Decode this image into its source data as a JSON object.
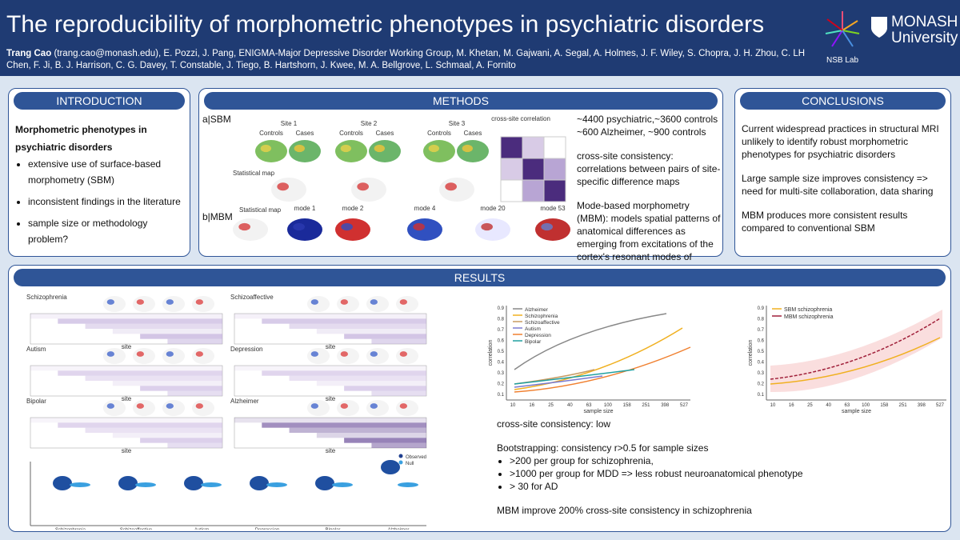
{
  "header": {
    "title": "The reproducibility of morphometric phenotypes in psychiatric disorders",
    "presenter": "Trang Cao",
    "authors": "(trang.cao@monash.edu), E. Pozzi, J. Pang, ENIGMA-Major Depressive Disorder Working Group, M. Khetan, M. Gajwani, A. Segal, A. Holmes, J. F. Wiley, S. Chopra, J. H. Zhou, C. LH Chen, F. Ji, B. J. Harrison, C. G. Davey, T. Constable, J. Tiego, B. Hartshorn, J. Kwee, M. A. Bellgrove, L. Schmaal, A. Fornito",
    "lab": "NSB Lab",
    "university": [
      "MONASH",
      "University"
    ]
  },
  "introduction": {
    "heading": "INTRODUCTION",
    "subtitle": "Morphometric phenotypes in psychiatric disorders",
    "bullets": [
      "extensive use of surface-based morphometry (SBM)",
      "inconsistent findings in the literature",
      "sample size or methodology problem?"
    ]
  },
  "methods": {
    "heading": "METHODS",
    "panel_a": "a|SBM",
    "panel_b": "b|MBM",
    "sites": [
      "Site 1",
      "Site 2",
      "Site 3"
    ],
    "controls": "Controls",
    "cases": "Cases",
    "statistical_map": "Statistical map",
    "correlation_title": "cross-site correlation",
    "modes": [
      "mode 1",
      "mode 2",
      "mode 4",
      "mode 20",
      "mode 53"
    ],
    "paragraphs": [
      "~4400 psychiatric,~3600 controls",
      "~600 Alzheimer, ~900 controls",
      "cross-site consistency: correlations between pairs of site-specific difference maps",
      "Mode-based morphometry (MBM): models spatial patterns of anatomical differences as emerging from excitations of the cortex's resonant modes of geometry"
    ]
  },
  "conclusions": {
    "heading": "CONCLUSIONS",
    "paragraphs": [
      "Current widespread practices in structural MRI unlikely to identify robust morphometric phenotypes for psychiatric disorders",
      "Large sample size improves consistency => need for multi-site collaboration, data sharing",
      "MBM produces more consistent results compared to conventional SBM"
    ]
  },
  "results": {
    "heading": "RESULTS",
    "groups": [
      "Schizophrenia",
      "Schizoaffective",
      "Autism",
      "Depression",
      "Bipolar",
      "Alzheimer"
    ],
    "site_label": "site",
    "violin_legend": [
      "Observed",
      "Null"
    ],
    "line_legend": [
      "Alzheimer",
      "Schizophrenia",
      "Schizoaffective",
      "Autism",
      "Depression",
      "Bipolar"
    ],
    "compare_legend": [
      "SBM schizophrenia",
      "MBM schizophrenia"
    ],
    "x_label": "sample size",
    "y_label": "correlation",
    "x_ticks": [
      "10",
      "16",
      "25",
      "40",
      "63",
      "100",
      "158",
      "251",
      "398",
      "527"
    ],
    "y_ticks": [
      "0.9",
      "0.8",
      "0.7",
      "0.6",
      "0.5",
      "0.4",
      "0.3",
      "0.2",
      "0.1"
    ],
    "summary": "cross-site consistency: low",
    "bootstrap": "Bootstrapping: consistency r>0.5 for sample sizes",
    "bullets": [
      ">200 per group for schizophrenia,",
      ">1000 per group for MDD => less robust neuroanatomical phenotype",
      "> 30 for AD"
    ],
    "conclusion": "MBM improve 200% cross-site consistency in schizophrenia"
  }
}
